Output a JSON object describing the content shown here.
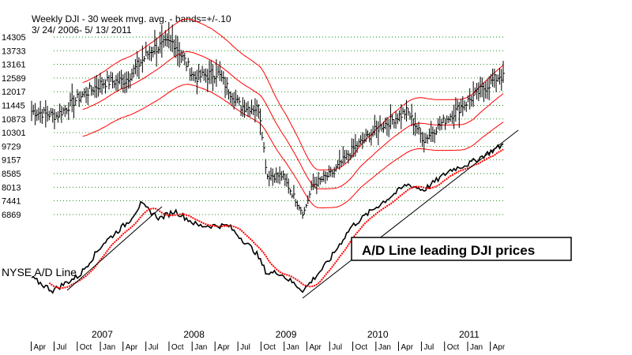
{
  "chart_data": {
    "type": "line",
    "title": "Weekly DJI - 30 week mvg. avg. - bands=+/-.10",
    "subtitle": "3/ 24/ 2006- 5/ 13/ 2011",
    "y_ticks": [
      14305,
      13733,
      13161,
      12589,
      12017,
      11445,
      10873,
      10301,
      9729,
      9157,
      8585,
      8013,
      7441,
      6869
    ],
    "ylim": [
      6600,
      14600
    ],
    "grid": true,
    "x_years": [
      {
        "year": "2007",
        "at": "2007-01-01"
      },
      {
        "year": "2008",
        "at": "2008-01-01"
      },
      {
        "year": "2009",
        "at": "2009-01-01"
      },
      {
        "year": "2010",
        "at": "2010-01-01"
      },
      {
        "year": "2011",
        "at": "2011-01-01"
      }
    ],
    "x_months": [
      "Apr",
      "Jul",
      "Oct",
      "Jan",
      "Apr",
      "Jul",
      "Oct",
      "Jan",
      "Apr",
      "Jul",
      "Oct",
      "Jan",
      "Apr",
      "Jul",
      "Oct",
      "Jan",
      "Apr",
      "Jul",
      "Oct",
      "Jan",
      "Apr"
    ],
    "dji_weekly": {
      "dates": [
        "2006-03-24",
        "2006-07-01",
        "2006-10-01",
        "2007-01-01",
        "2007-04-01",
        "2007-07-15",
        "2007-10-10",
        "2008-01-01",
        "2008-04-01",
        "2008-07-01",
        "2008-09-15",
        "2008-10-15",
        "2008-12-15",
        "2009-03-09",
        "2009-04-15",
        "2009-07-01",
        "2009-10-01",
        "2010-01-01",
        "2010-04-26",
        "2010-07-01",
        "2010-10-01",
        "2011-01-01",
        "2011-04-29",
        "2011-05-13"
      ],
      "values": [
        11200,
        11000,
        11800,
        12400,
        12500,
        13800,
        14100,
        12600,
        12800,
        11400,
        11300,
        8500,
        8500,
        6900,
        8100,
        8600,
        9700,
        10500,
        11200,
        10000,
        10900,
        11700,
        12700,
        12600
      ]
    },
    "nyse_ad_line": {
      "label": "NYSE A/D Line",
      "dates": [
        "2006-03-24",
        "2006-06-15",
        "2006-10-01",
        "2007-01-01",
        "2007-04-15",
        "2007-06-01",
        "2007-08-15",
        "2007-10-15",
        "2008-01-15",
        "2008-05-15",
        "2008-09-01",
        "2008-10-15",
        "2008-12-01",
        "2009-03-09",
        "2009-06-15",
        "2009-09-15",
        "2009-12-15",
        "2010-04-26",
        "2010-07-01",
        "2010-10-15",
        "2011-01-01",
        "2011-05-13"
      ],
      "values": [
        30,
        8,
        35,
        90,
        130,
        160,
        135,
        148,
        122,
        122,
        75,
        38,
        40,
        8,
        58,
        120,
        152,
        195,
        185,
        220,
        232,
        265
      ]
    },
    "annotations": [
      "NYSE A/D Line",
      "A/D Line leading DJI prices"
    ],
    "line_colors": {
      "price": "#000000",
      "moving_average": "#ff0000",
      "bands": "#ff0000",
      "ad_line": "#000000",
      "ad_moving_average": "#ff0000",
      "trendline": "#000000"
    }
  }
}
